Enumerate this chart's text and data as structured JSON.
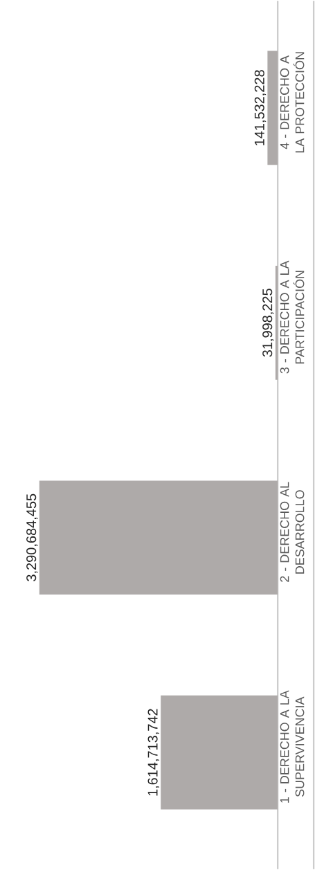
{
  "chart_data": {
    "type": "bar",
    "orientation": "horizontal",
    "categories": [
      "4 - DERECHO A LA PROTECCIÓN",
      "3 - DERECHO A LA PARTICIPACIÓN",
      "2 - DERECHO AL DESARROLLO",
      "1 - DERECHO A LA SUPERVIVENCIA"
    ],
    "values": [
      141532228,
      31998225,
      3290684455,
      1614713742
    ],
    "value_labels": [
      "141,532,228",
      "31,998,225",
      "3,290,684,455",
      "1,614,713,742"
    ],
    "color": "#aeaaa9"
  }
}
